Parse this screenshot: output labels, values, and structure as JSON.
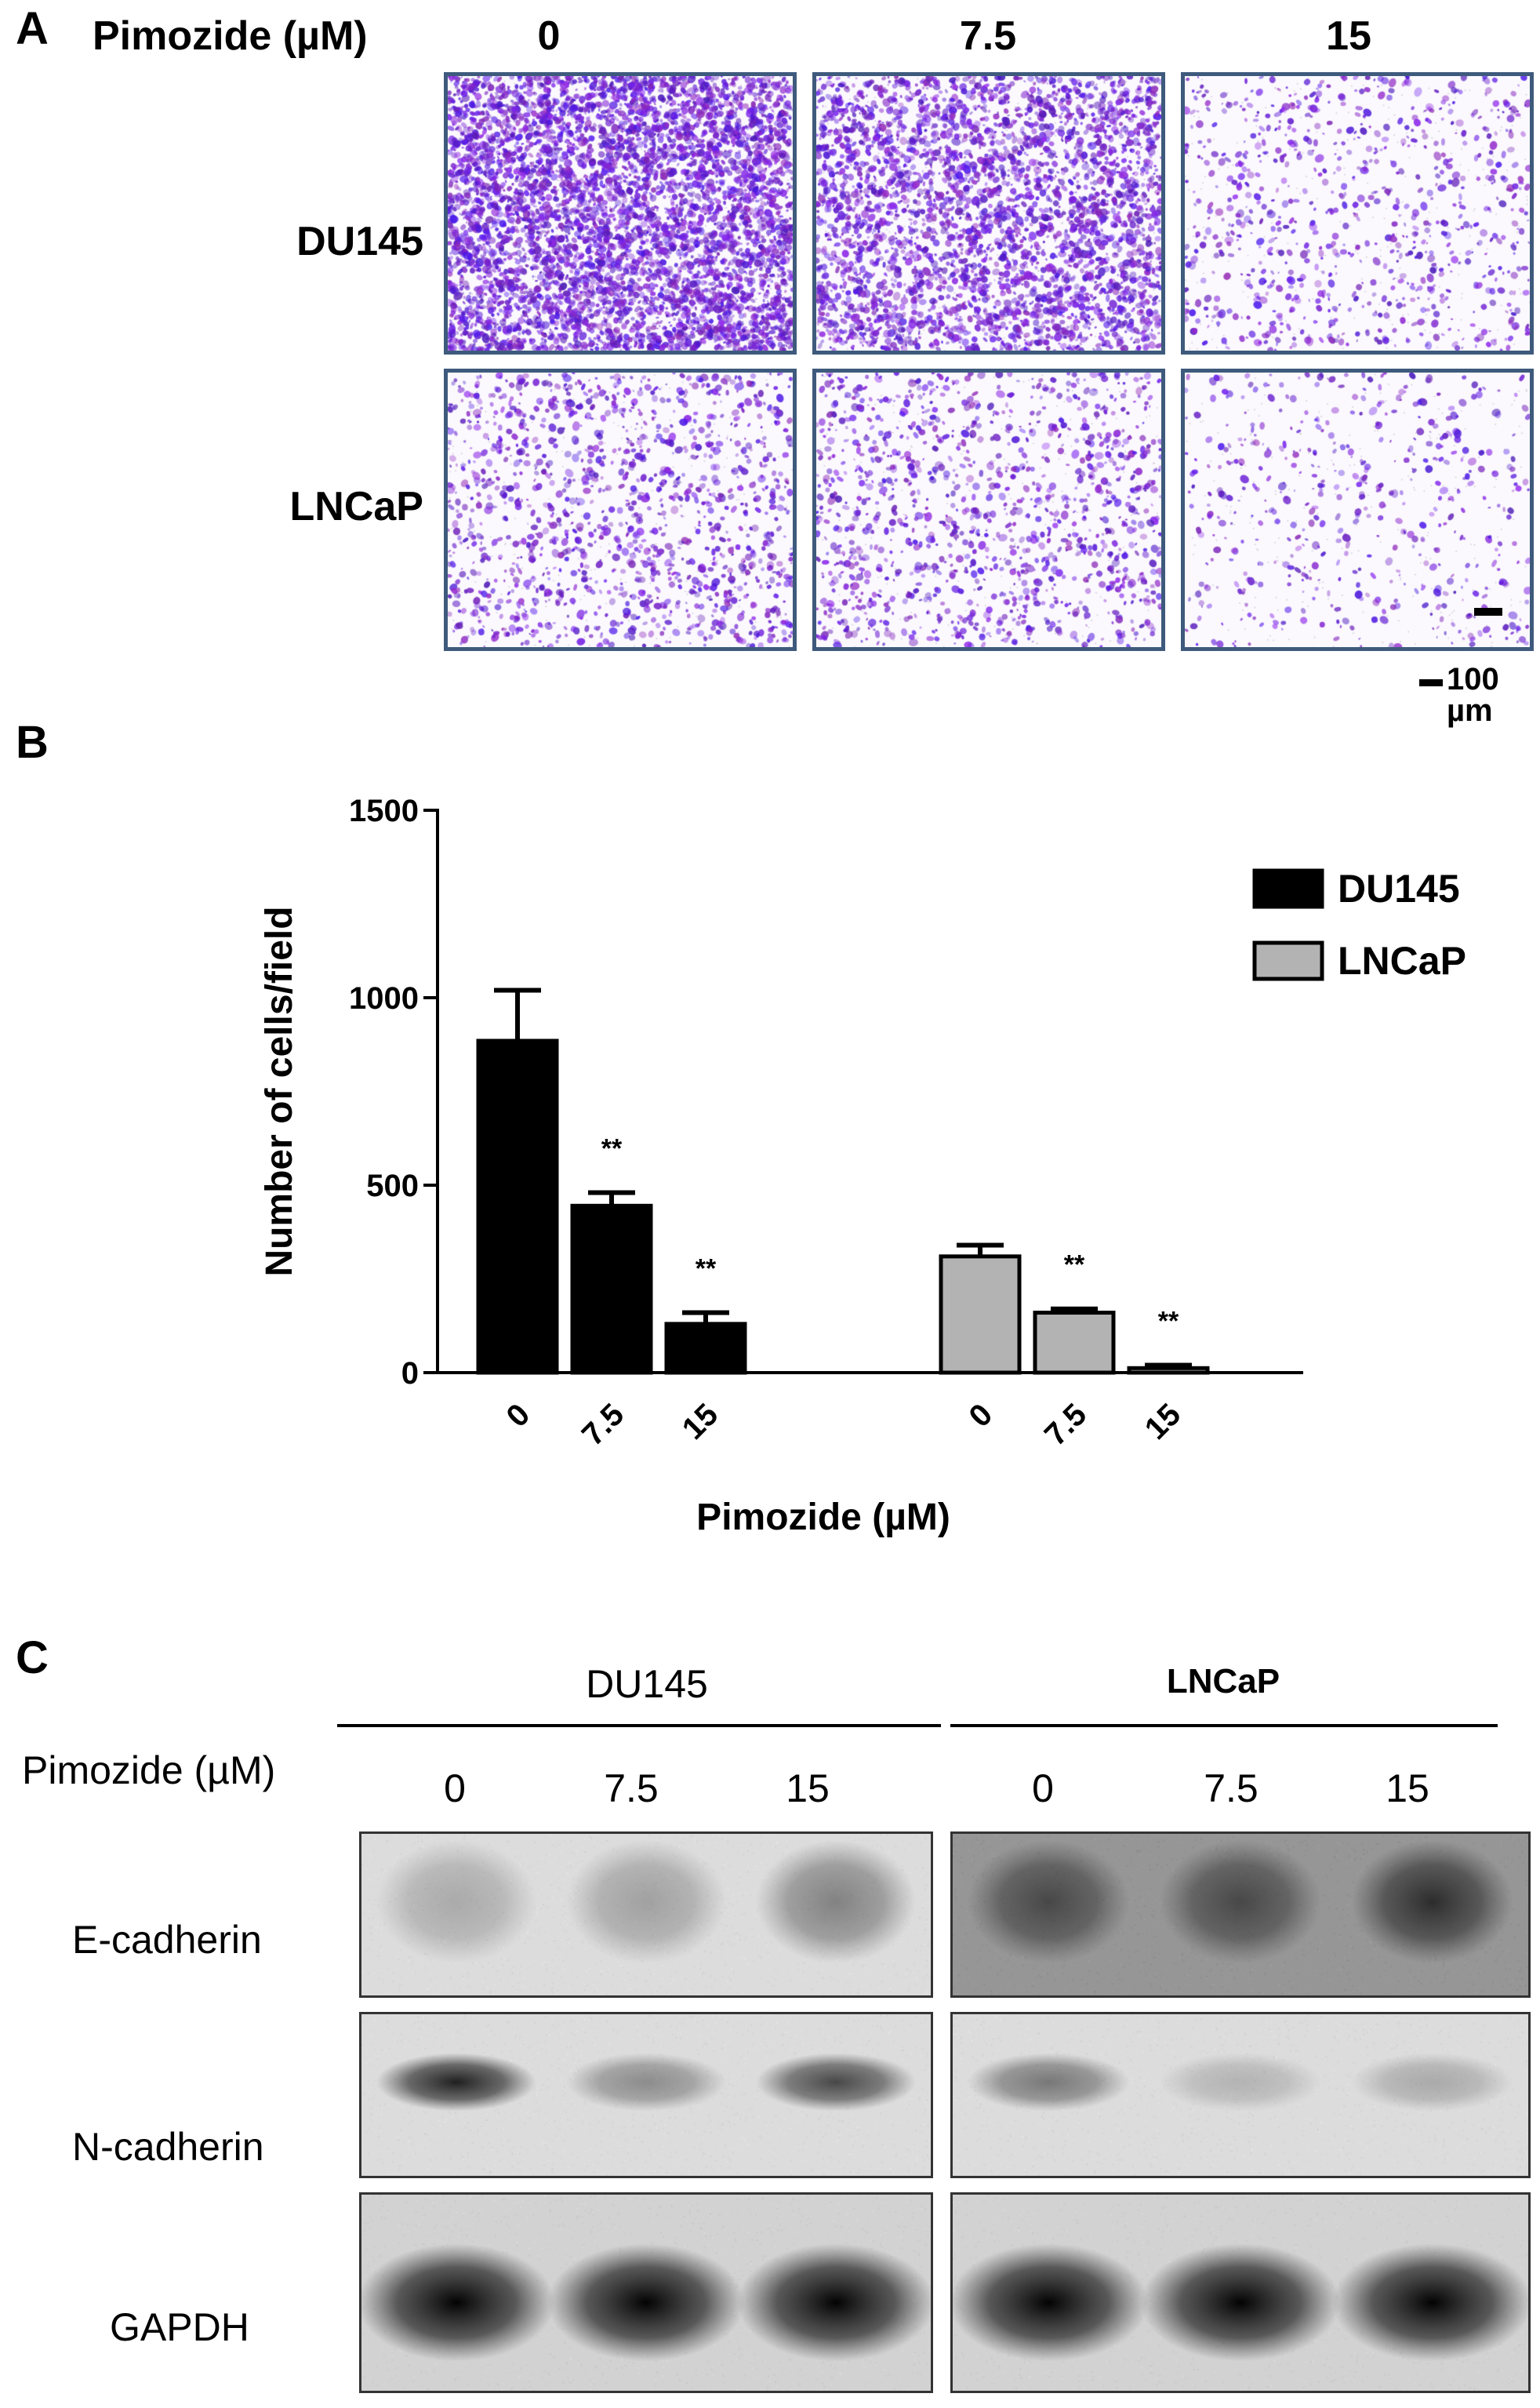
{
  "panel_a": {
    "letter": "A",
    "dose_header": "Pimozide (µM)",
    "doses": [
      "0",
      "7.5",
      "15"
    ],
    "rows": [
      "DU145",
      "LNCaP"
    ],
    "density": [
      [
        1.0,
        0.62,
        0.12
      ],
      [
        0.22,
        0.2,
        0.06
      ]
    ],
    "scale_bar": "100 µm",
    "colors": {
      "frame": "#3e5a7c",
      "stain": "#7a2ec2"
    }
  },
  "panel_b": {
    "letter": "B"
  },
  "chart_data": {
    "type": "bar",
    "xlabel": "Pimozide (µM)",
    "ylabel": "Number of cells/field",
    "ylim": [
      0,
      1500
    ],
    "yticks": [
      "0",
      "500",
      "1000",
      "1500"
    ],
    "groups": [
      {
        "name": "DU145",
        "color": "#000000",
        "categories": [
          "0",
          "7.5",
          "15"
        ],
        "values": [
          885,
          445,
          130
        ],
        "errors": [
          135,
          35,
          30
        ],
        "marks": [
          "",
          "**",
          "**"
        ]
      },
      {
        "name": "LNCaP",
        "color": "#b3b3b3",
        "categories": [
          "0",
          "7.5",
          "15"
        ],
        "values": [
          310,
          160,
          12
        ],
        "errors": [
          30,
          10,
          8
        ],
        "marks": [
          "",
          "**",
          "**"
        ]
      }
    ],
    "legend": {
      "position": "top-right",
      "entries": [
        "DU145",
        "LNCaP"
      ]
    },
    "grid": false
  },
  "panel_c": {
    "letter": "C",
    "groups": [
      "DU145",
      "LNCaP"
    ],
    "dose_header": "Pimozide (µM)",
    "doses": [
      "0",
      "7.5",
      "15",
      "0",
      "7.5",
      "15"
    ],
    "proteins": [
      "E-cadherin",
      "N-cadherin",
      "GAPDH"
    ],
    "band_intensity": {
      "E-cadherin": [
        0.25,
        0.3,
        0.45,
        0.6,
        0.6,
        0.75
      ],
      "N-cadherin": [
        0.85,
        0.4,
        0.7,
        0.5,
        0.2,
        0.25
      ],
      "GAPDH": [
        0.95,
        0.95,
        0.95,
        0.95,
        0.95,
        0.95
      ]
    }
  }
}
